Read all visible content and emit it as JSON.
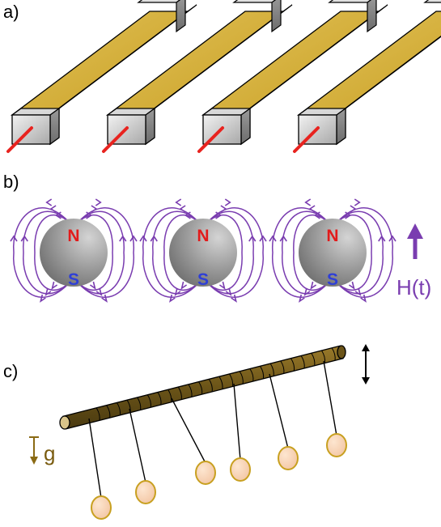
{
  "panel_labels": {
    "a": "a)",
    "b": "b)",
    "c": "c)"
  },
  "panel_b": {
    "north_label": "N",
    "south_label": "S",
    "field_label": "H(t)",
    "magnet_count": 3
  },
  "panel_c": {
    "gravity_label": "g",
    "pendulum_count": 6
  },
  "panel_a": {
    "rod_count": 4
  },
  "colors": {
    "rod_gold": "#c9a227",
    "field_purple": "#7a3db0",
    "north_red": "#e21b1b",
    "south_blue": "#2f3fd6",
    "wire_red": "#e8231f",
    "stick_brown": "#6b5418",
    "bob_fill": "#f5d2b4",
    "bob_stroke": "#c8a020"
  }
}
